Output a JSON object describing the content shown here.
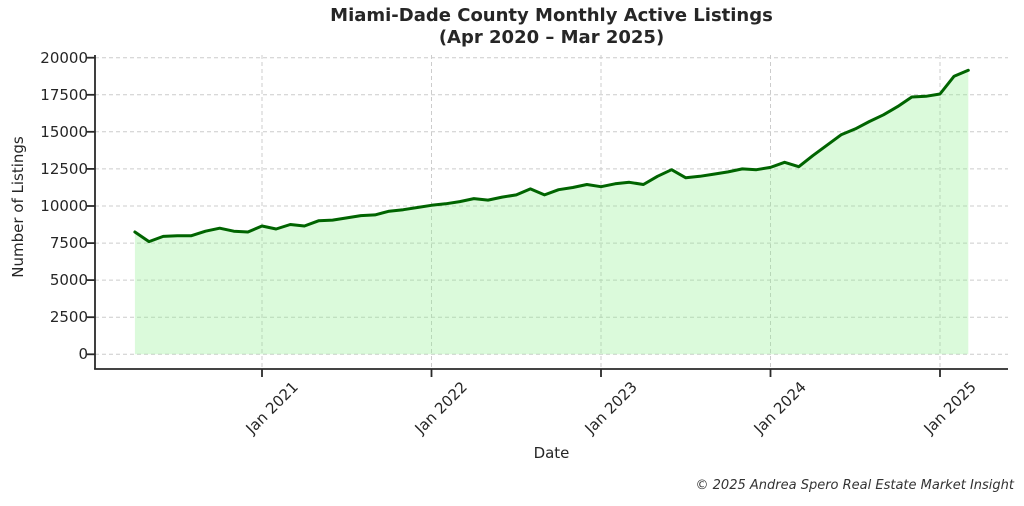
{
  "title": {
    "line1": "Miami-Dade County Monthly Active Listings",
    "line2": "(Apr 2020 – Mar 2025)"
  },
  "axes": {
    "x_label": "Date",
    "y_label": "Number of Listings",
    "y_ticks": [
      0,
      2500,
      5000,
      7500,
      10000,
      12500,
      15000,
      17500,
      20000
    ],
    "x_ticks": [
      {
        "label": "Jan 2021",
        "month_index": 9
      },
      {
        "label": "Jan 2022",
        "month_index": 21
      },
      {
        "label": "Jan 2023",
        "month_index": 33
      },
      {
        "label": "Jan 2024",
        "month_index": 45
      },
      {
        "label": "Jan 2025",
        "month_index": 57
      }
    ]
  },
  "footer": {
    "credit": "© 2025 Andrea Spero Real Estate Market Insight"
  },
  "colors": {
    "line": "#006400",
    "fill": "rgba(144,238,144,0.32)",
    "grid": "#cccccc",
    "spine": "#2a2a2a",
    "text": "#262626"
  },
  "chart_data": {
    "type": "area",
    "title": "Miami-Dade County Monthly Active Listings",
    "subtitle": "(Apr 2020 – Mar 2025)",
    "xlabel": "Date",
    "ylabel": "Number of Listings",
    "ylim": [
      0,
      20000
    ],
    "grid": true,
    "grid_style": "dashed",
    "legend": "none",
    "x": [
      "Apr 2020",
      "May 2020",
      "Jun 2020",
      "Jul 2020",
      "Aug 2020",
      "Sep 2020",
      "Oct 2020",
      "Nov 2020",
      "Dec 2020",
      "Jan 2021",
      "Feb 2021",
      "Mar 2021",
      "Apr 2021",
      "May 2021",
      "Jun 2021",
      "Jul 2021",
      "Aug 2021",
      "Sep 2021",
      "Oct 2021",
      "Nov 2021",
      "Dec 2021",
      "Jan 2022",
      "Feb 2022",
      "Mar 2022",
      "Apr 2022",
      "May 2022",
      "Jun 2022",
      "Jul 2022",
      "Aug 2022",
      "Sep 2022",
      "Oct 2022",
      "Nov 2022",
      "Dec 2022",
      "Jan 2023",
      "Feb 2023",
      "Mar 2023",
      "Apr 2023",
      "May 2023",
      "Jun 2023",
      "Jul 2023",
      "Aug 2023",
      "Sep 2023",
      "Oct 2023",
      "Nov 2023",
      "Dec 2023",
      "Jan 2024",
      "Feb 2024",
      "Mar 2024",
      "Apr 2024",
      "May 2024",
      "Jun 2024",
      "Jul 2024",
      "Aug 2024",
      "Sep 2024",
      "Oct 2024",
      "Nov 2024",
      "Dec 2024",
      "Jan 2025",
      "Feb 2025",
      "Mar 2025"
    ],
    "values": [
      8250,
      7600,
      7950,
      8000,
      8000,
      8300,
      8500,
      8300,
      8250,
      8650,
      8450,
      8750,
      8650,
      9000,
      9050,
      9200,
      9350,
      9400,
      9650,
      9750,
      9900,
      10050,
      10150,
      10300,
      10500,
      10400,
      10600,
      10750,
      11150,
      10750,
      11100,
      11250,
      11450,
      11300,
      11500,
      11600,
      11450,
      12000,
      12450,
      11900,
      12000,
      12150,
      12300,
      12500,
      12450,
      12600,
      12950,
      12650,
      13400,
      14100,
      14800,
      15200,
      15700,
      16150,
      16700,
      17350,
      17400,
      17550,
      18750,
      19150
    ]
  }
}
